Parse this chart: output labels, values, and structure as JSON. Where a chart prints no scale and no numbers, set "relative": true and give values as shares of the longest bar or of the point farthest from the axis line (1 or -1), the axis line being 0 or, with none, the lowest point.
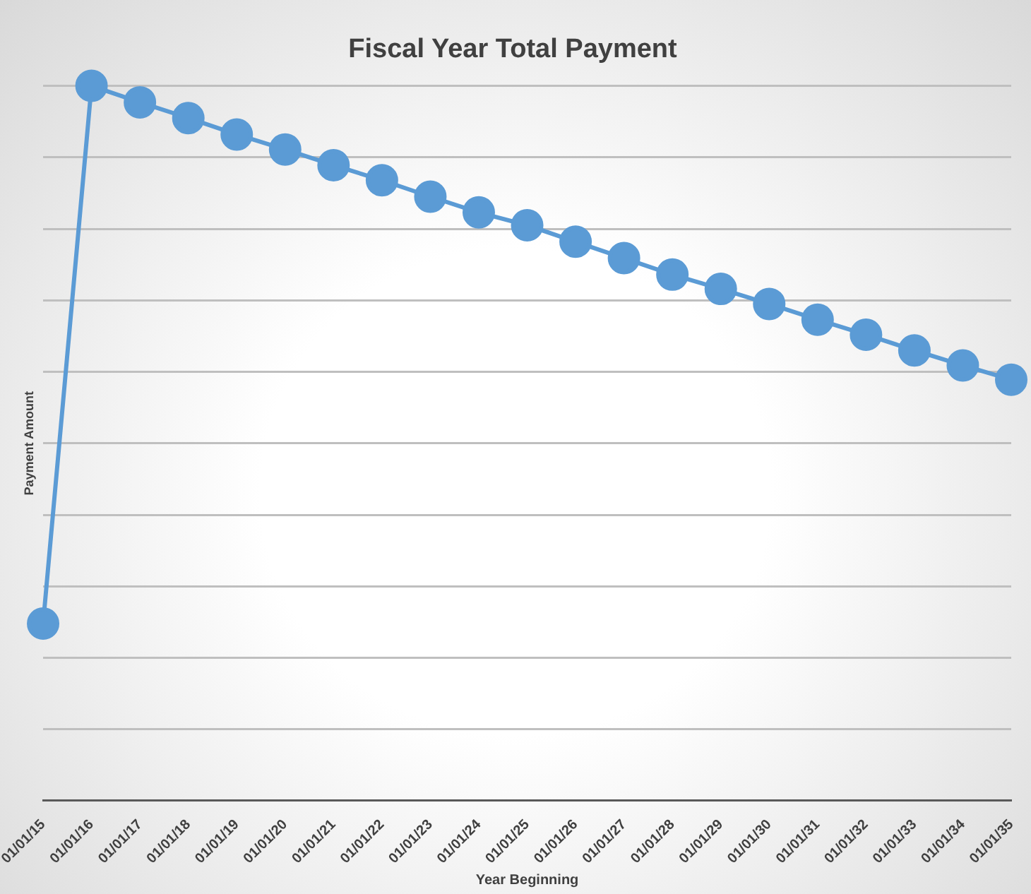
{
  "chart_data": {
    "type": "line",
    "title": "Fiscal Year Total Payment",
    "xlabel": "Year Beginning",
    "ylabel": "Payment Amount",
    "categories": [
      "01/01/15",
      "01/01/16",
      "01/01/17",
      "01/01/18",
      "01/01/19",
      "01/01/20",
      "01/01/21",
      "01/01/22",
      "01/01/23",
      "01/01/24",
      "01/01/25",
      "01/01/26",
      "01/01/27",
      "01/01/28",
      "01/01/29",
      "01/01/30",
      "01/01/31",
      "01/01/32",
      "01/01/33",
      "01/01/34",
      "01/01/35"
    ],
    "series": [
      {
        "color": "#5b9bd5",
        "values": [
          0.248,
          1,
          0.977,
          0.955,
          0.932,
          0.911,
          0.889,
          0.868,
          0.845,
          0.823,
          0.805,
          0.782,
          0.759,
          0.736,
          0.716,
          0.695,
          0.673,
          0.652,
          0.63,
          0.609,
          0.589
        ]
      }
    ],
    "relative": true,
    "grid": "y",
    "legend": false,
    "marker": "circle",
    "line_style": "solid"
  }
}
